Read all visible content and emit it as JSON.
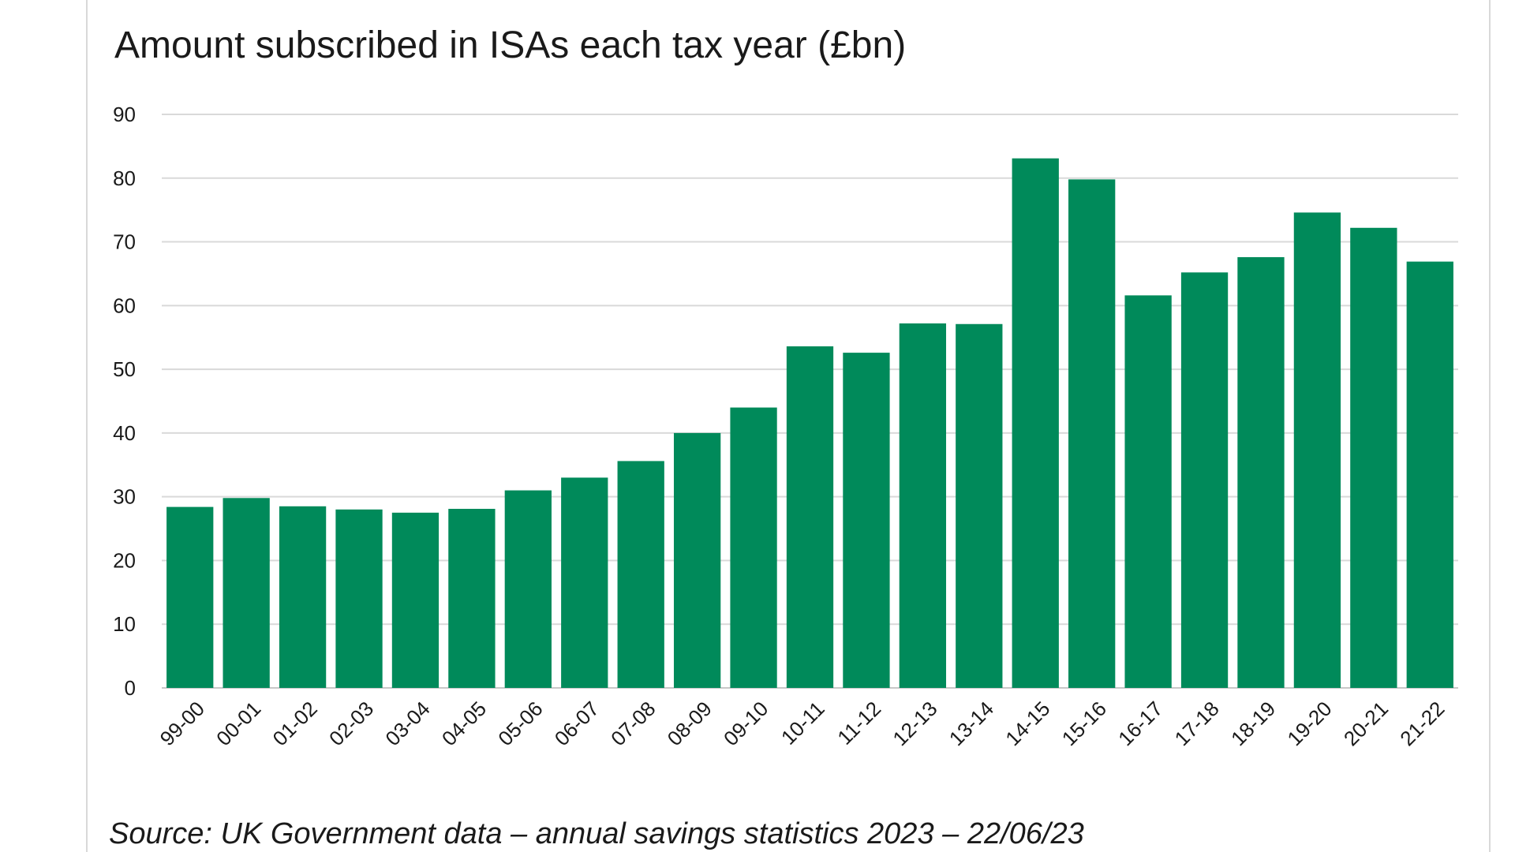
{
  "chart_data": {
    "type": "bar",
    "title": "Amount subscribed in ISAs each tax year (£bn)",
    "xlabel": "",
    "ylabel": "",
    "categories": [
      "99-00",
      "00-01",
      "01-02",
      "02-03",
      "03-04",
      "04-05",
      "05-06",
      "06-07",
      "07-08",
      "08-09",
      "09-10",
      "10-11",
      "11-12",
      "12-13",
      "13-14",
      "14-15",
      "15-16",
      "16-17",
      "17-18",
      "18-19",
      "19-20",
      "20-21",
      "21-22"
    ],
    "values": [
      28.4,
      29.8,
      28.5,
      28.0,
      27.5,
      28.1,
      31.0,
      33.0,
      35.6,
      40.0,
      44.0,
      53.6,
      52.6,
      57.2,
      57.1,
      83.1,
      79.8,
      61.6,
      65.2,
      67.6,
      74.6,
      72.2,
      66.9
    ],
    "ylim": [
      0,
      90
    ],
    "yticks": [
      0,
      10,
      20,
      30,
      40,
      50,
      60,
      70,
      80,
      90
    ],
    "grid": true,
    "legend": "none",
    "bar_color": "#008a5a",
    "grid_color": "#d9d9d9"
  },
  "source_note": "Source: UK Government data – annual savings statistics 2023 – 22/06/23"
}
